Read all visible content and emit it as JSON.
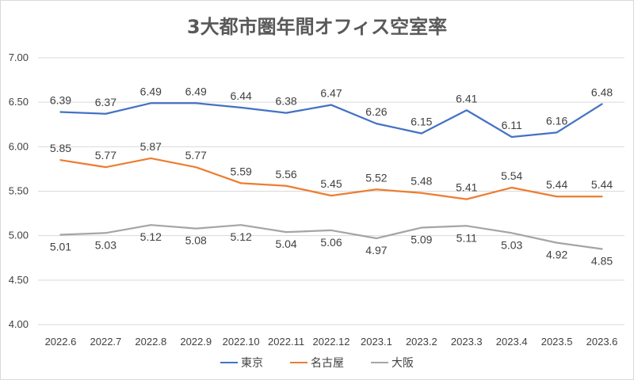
{
  "chart_data": {
    "type": "line",
    "title": "3大都市圏年間オフィス空室率",
    "categories": [
      "2022.6",
      "2022.7",
      "2022.8",
      "2022.9",
      "2022.10",
      "2022.11",
      "2022.12",
      "2023.1",
      "2023.2",
      "2023.3",
      "2023.4",
      "2023.5",
      "2023.6"
    ],
    "ylim": [
      4.0,
      7.0
    ],
    "yticks": [
      "7.00",
      "6.50",
      "6.00",
      "5.50",
      "5.00",
      "4.50",
      "4.00"
    ],
    "grid": true,
    "legend_position": "bottom",
    "series": [
      {
        "name": "東京",
        "color": "#4472c4",
        "label_position": "above",
        "values": [
          6.39,
          6.37,
          6.49,
          6.49,
          6.44,
          6.38,
          6.47,
          6.26,
          6.15,
          6.41,
          6.11,
          6.16,
          6.48
        ],
        "labels": [
          "6.39",
          "6.37",
          "6.49",
          "6.49",
          "6.44",
          "6.38",
          "6.47",
          "6.26",
          "6.15",
          "6.41",
          "6.11",
          "6.16",
          "6.48"
        ]
      },
      {
        "name": "名古屋",
        "color": "#ed7d31",
        "label_position": "above",
        "values": [
          5.85,
          5.77,
          5.87,
          5.77,
          5.59,
          5.56,
          5.45,
          5.52,
          5.48,
          5.41,
          5.54,
          5.44,
          5.44
        ],
        "labels": [
          "5.85",
          "5.77",
          "5.87",
          "5.77",
          "5.59",
          "5.56",
          "5.45",
          "5.52",
          "5.48",
          "5.41",
          "5.54",
          "5.44",
          "5.44"
        ]
      },
      {
        "name": "大阪",
        "color": "#a5a5a5",
        "label_position": "below",
        "values": [
          5.01,
          5.03,
          5.12,
          5.08,
          5.12,
          5.04,
          5.06,
          4.97,
          5.09,
          5.11,
          5.03,
          4.92,
          4.85
        ],
        "labels": [
          "5.01",
          "5.03",
          "5.12",
          "5.08",
          "5.12",
          "5.04",
          "5.06",
          "4.97",
          "5.09",
          "5.11",
          "5.03",
          "4.92",
          "4.85"
        ]
      }
    ]
  }
}
